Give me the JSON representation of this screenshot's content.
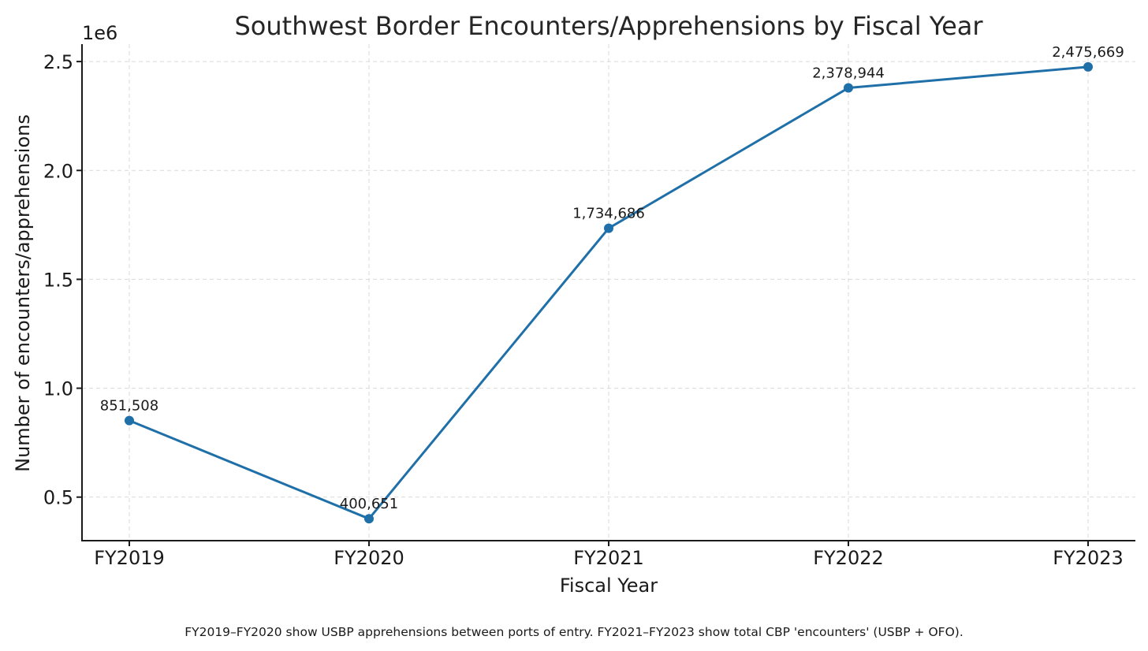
{
  "chart_data": {
    "type": "line",
    "title": "Southwest Border Encounters/Apprehensions by Fiscal Year",
    "xlabel": "Fiscal Year",
    "ylabel": "Number of encounters/apprehensions",
    "y_offset_label": "1e6",
    "categories": [
      "FY2019",
      "FY2020",
      "FY2021",
      "FY2022",
      "FY2023"
    ],
    "series": [
      {
        "name": "Encounters/Apprehensions",
        "color": "#1f6fa8",
        "values": [
          851508,
          400651,
          1734686,
          2378944,
          2475669
        ],
        "labels": [
          "851,508",
          "400,651",
          "1,734,686",
          "2,378,944",
          "2,475,669"
        ]
      }
    ],
    "ylim": [
      300000,
      2580000
    ],
    "yticks": [
      500000,
      1000000,
      1500000,
      2000000,
      2500000
    ],
    "ytick_labels": [
      "0.5",
      "1.0",
      "1.5",
      "2.0",
      "2.5"
    ],
    "grid": true,
    "legend": "none",
    "footnote": "FY2019–FY2020 show USBP apprehensions between ports of entry. FY2021–FY2023 show total CBP 'encounters' (USBP + OFO)."
  }
}
